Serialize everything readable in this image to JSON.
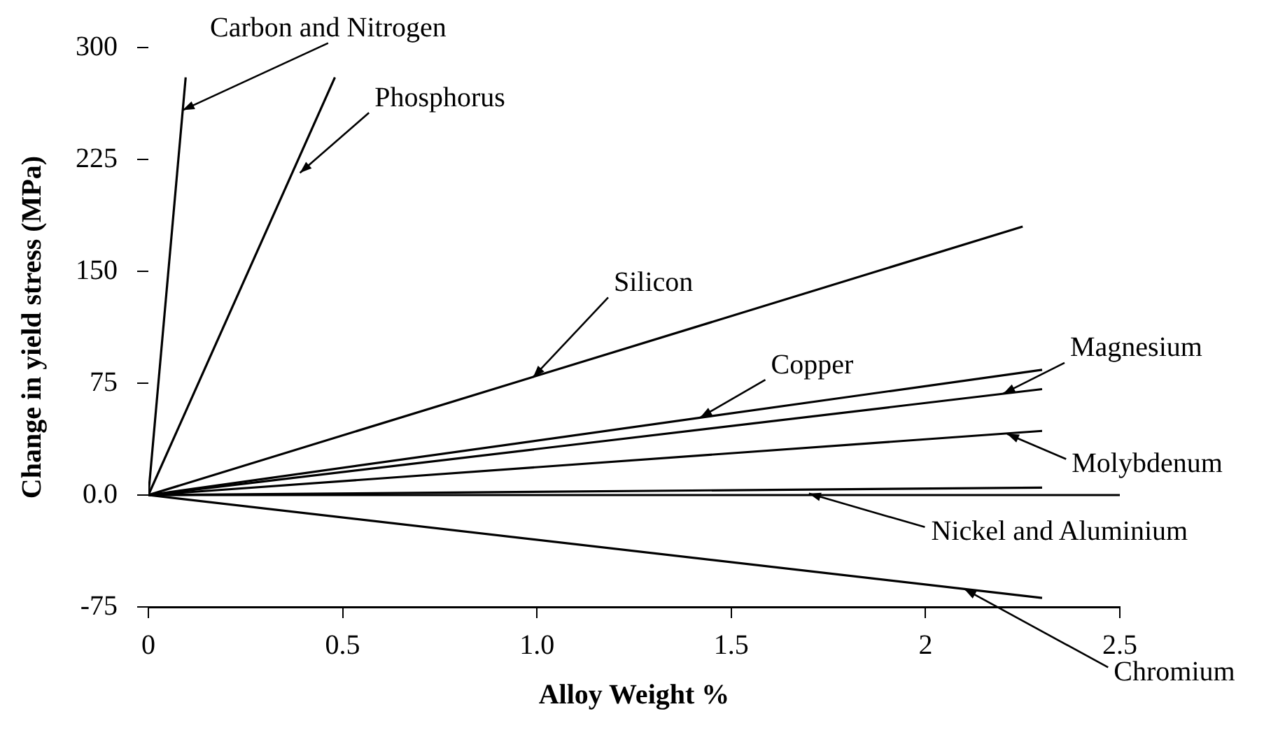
{
  "chart_data": {
    "type": "line",
    "xlabel": "Alloy Weight %",
    "ylabel": "Change in yield stress (MPa)",
    "series": [
      {
        "x": [
          0,
          0.096
        ],
        "values": [
          0,
          280
        ],
        "color": "#000000"
      },
      {
        "x": [
          0,
          0.48
        ],
        "values": [
          0,
          280
        ],
        "color": "#000000"
      },
      {
        "x": [
          0,
          2.25
        ],
        "values": [
          0,
          180
        ],
        "color": "#000000"
      },
      {
        "x": [
          0,
          2.3
        ],
        "values": [
          0,
          84
        ],
        "color": "#000000"
      },
      {
        "x": [
          0,
          2.3
        ],
        "values": [
          0,
          71
        ],
        "color": "#000000"
      },
      {
        "x": [
          0,
          2.3
        ],
        "values": [
          0,
          43
        ],
        "color": "#000000"
      },
      {
        "x": [
          0,
          2.3
        ],
        "values": [
          0,
          5
        ],
        "color": "#000000"
      },
      {
        "x": [
          0,
          2.5
        ],
        "values": [
          0,
          0
        ],
        "color": "#000000"
      },
      {
        "x": [
          0,
          2.3
        ],
        "values": [
          0,
          -69
        ],
        "color": "#000000"
      }
    ],
    "xlim": [
      0,
      2.5
    ],
    "xticks": [
      0,
      0.5,
      {
        "value": 1,
        "label": "1.0"
      },
      {
        "value": 1.5,
        "label": "1.5"
      },
      2,
      2.5
    ],
    "ylim": [
      -75,
      300
    ],
    "yticks": [
      -75,
      {
        "value": 0,
        "label": "0.0"
      },
      75,
      150,
      225,
      300
    ],
    "grid": false,
    "legend": false,
    "marker": "none",
    "line_style": "solid",
    "annotations": [
      {
        "text": "Carbon and Nitrogen",
        "x": 0.088,
        "y": 258
      },
      {
        "text": "Phosphorus",
        "x": 0.39,
        "y": 216
      },
      {
        "text": "Silicon",
        "x": 0.99,
        "y": 79
      },
      {
        "text": "Copper",
        "x": 1.42,
        "y": 52
      },
      {
        "text": "Magnesium",
        "x": 2.2,
        "y": 68
      },
      {
        "text": "Molybdenum",
        "x": 2.21,
        "y": 41
      },
      {
        "text": "Nickel and Aluminium",
        "x": 1.7,
        "y": 1
      },
      {
        "text": "Chromium",
        "x": 2.1,
        "y": -63
      }
    ]
  }
}
